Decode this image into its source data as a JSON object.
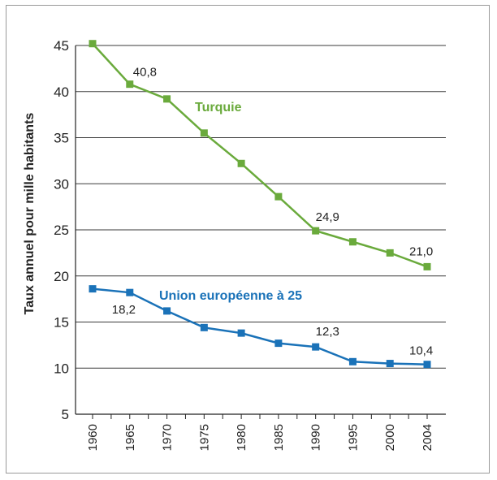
{
  "chart_data": {
    "type": "line",
    "xlabel": "",
    "ylabel": "Taux annuel pour mille habitants",
    "ylim": [
      5,
      45
    ],
    "yticks": [
      "5",
      "10",
      "15",
      "20",
      "25",
      "30",
      "35",
      "40",
      "45"
    ],
    "categories": [
      "1960",
      "1965",
      "1970",
      "1975",
      "1980",
      "1985",
      "1990",
      "1995",
      "2000",
      "2004"
    ],
    "grid": true,
    "series": [
      {
        "name": "Turquie",
        "color": "#6aaa3c",
        "values": [
          45.2,
          40.8,
          39.2,
          35.5,
          32.2,
          28.6,
          24.9,
          23.7,
          22.5,
          21.0
        ]
      },
      {
        "name": "Union européenne à 25",
        "color": "#1a72b8",
        "values": [
          18.6,
          18.2,
          16.2,
          14.4,
          13.8,
          12.7,
          12.3,
          10.7,
          10.5,
          10.4
        ]
      }
    ],
    "annotations": [
      {
        "series": 0,
        "index": 1,
        "text": "40,8"
      },
      {
        "series": 0,
        "index": 6,
        "text": "24,9"
      },
      {
        "series": 0,
        "index": 9,
        "text": "21,0"
      },
      {
        "series": 1,
        "index": 1,
        "text": "18,2"
      },
      {
        "series": 1,
        "index": 6,
        "text": "12,3"
      },
      {
        "series": 1,
        "index": 9,
        "text": "10,4"
      }
    ]
  }
}
